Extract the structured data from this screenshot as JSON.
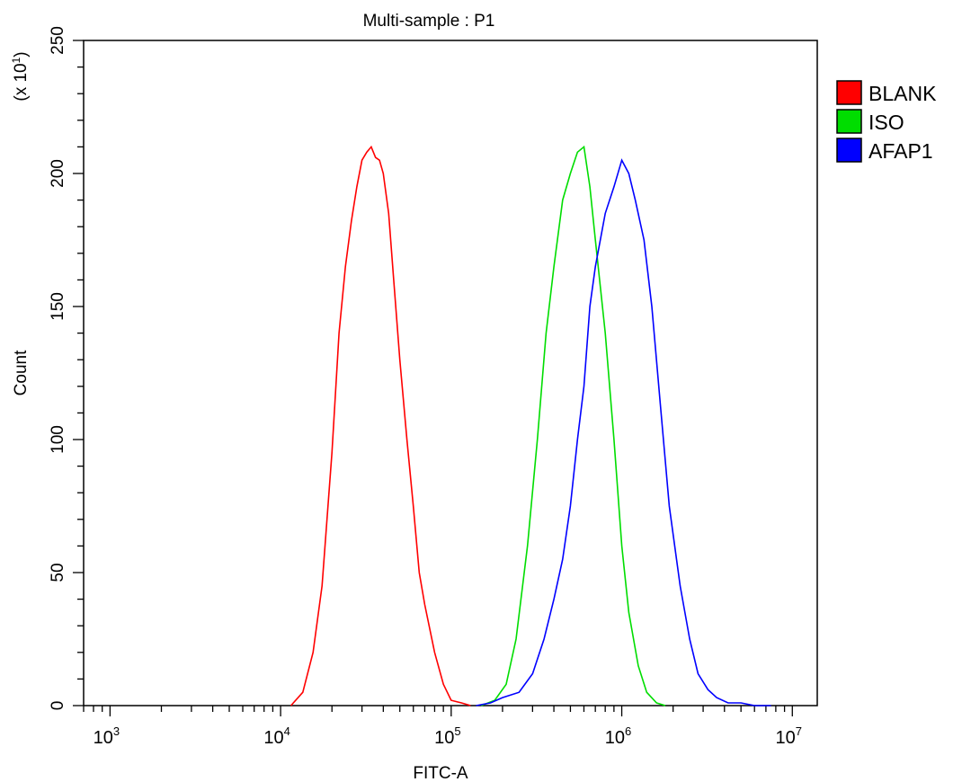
{
  "chart_data": {
    "type": "line",
    "title": "Multi-sample : P1",
    "xlabel": "FITC-A",
    "ylabel": "Count",
    "y_multiplier_base": "(x 10",
    "y_multiplier_exp": "1",
    "y_multiplier_close": ")",
    "x_scale": "log",
    "xlim": [
      700,
      14000000
    ],
    "ylim": [
      0,
      250
    ],
    "x_ticks": [
      {
        "value": 1000,
        "base": "10",
        "exp": "3"
      },
      {
        "value": 10000,
        "base": "10",
        "exp": "4"
      },
      {
        "value": 100000,
        "base": "10",
        "exp": "5"
      },
      {
        "value": 1000000,
        "base": "10",
        "exp": "6"
      },
      {
        "value": 10000000,
        "base": "10",
        "exp": "7"
      }
    ],
    "y_ticks": [
      0,
      50,
      100,
      150,
      200,
      250
    ],
    "legend_position": "right",
    "grid": false,
    "series": [
      {
        "name": "BLANK",
        "color": "#ff0000",
        "x": [
          11500,
          13500,
          15500,
          17500,
          20000,
          22000,
          24000,
          26000,
          28000,
          30000,
          32000,
          34000,
          36000,
          38000,
          40000,
          43000,
          46000,
          50000,
          55000,
          60000,
          65000,
          70000,
          80000,
          90000,
          100000,
          115000,
          130000
        ],
        "y": [
          0,
          5,
          20,
          45,
          95,
          140,
          165,
          182,
          195,
          205,
          208,
          210,
          206,
          205,
          200,
          185,
          160,
          130,
          100,
          75,
          50,
          38,
          20,
          8,
          2,
          1,
          0
        ]
      },
      {
        "name": "ISO",
        "color": "#00dd00",
        "x": [
          150000,
          180000,
          210000,
          240000,
          280000,
          320000,
          360000,
          400000,
          450000,
          500000,
          550000,
          600000,
          650000,
          700000,
          800000,
          900000,
          1000000,
          1100000,
          1250000,
          1400000,
          1600000,
          1800000
        ],
        "y": [
          0,
          2,
          8,
          25,
          60,
          100,
          140,
          165,
          190,
          200,
          208,
          210,
          195,
          175,
          140,
          100,
          60,
          35,
          15,
          5,
          1,
          0
        ]
      },
      {
        "name": "AFAP1",
        "color": "#0000ff",
        "x": [
          140000,
          170000,
          200000,
          250000,
          300000,
          350000,
          400000,
          450000,
          500000,
          550000,
          600000,
          650000,
          700000,
          800000,
          900000,
          1000000,
          1100000,
          1200000,
          1350000,
          1500000,
          1700000,
          1900000,
          2200000,
          2500000,
          2800000,
          3200000,
          3600000,
          4200000,
          5000000,
          6000000,
          7500000
        ],
        "y": [
          0,
          1,
          3,
          5,
          12,
          25,
          40,
          55,
          75,
          100,
          120,
          150,
          165,
          185,
          195,
          205,
          200,
          190,
          175,
          150,
          110,
          75,
          45,
          25,
          12,
          6,
          3,
          1,
          1,
          0,
          0
        ]
      }
    ]
  }
}
